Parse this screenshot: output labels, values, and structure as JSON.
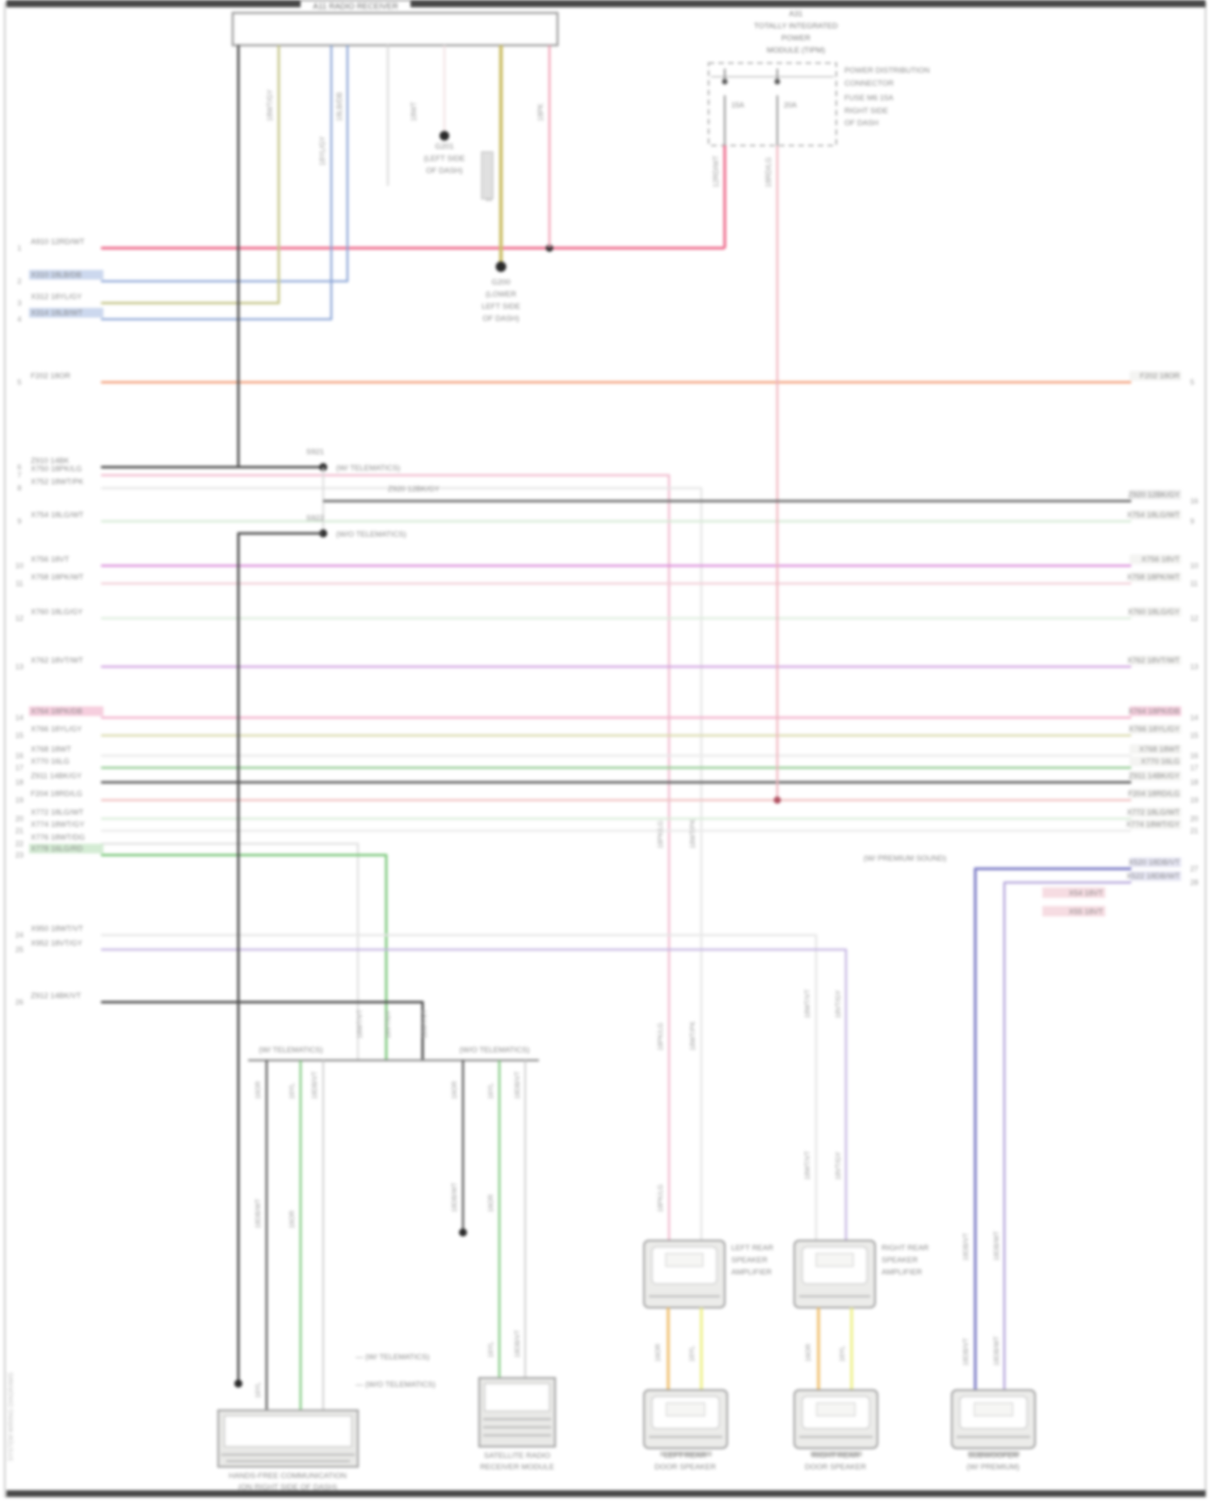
{
  "page": {
    "bg": "#ffffff",
    "border_color": "#c8c8c8",
    "edge_bar_color": "#474747",
    "watermark": "SYSTEM WIRING DIAGRAMS"
  },
  "radio": {
    "title": "A11 RADIO RECEIVER",
    "ground1_lines": [
      "G201",
      "(LEFT SIDE",
      "OF DASH)"
    ],
    "ground2_lines": [
      "G200",
      "(LOWER",
      "LEFT SIDE",
      "OF DASH)"
    ],
    "drop_codes": [
      "18WT/GY",
      "18LB/DB",
      "18YL/GY",
      "18WT",
      "16YL/BK",
      "18PK"
    ]
  },
  "tipm": {
    "title_lines": [
      "A31",
      "TOTALLY INTEGRATED",
      "POWER",
      "MODULE (TIPM)"
    ],
    "annotation_lines": [
      "POWER DISTRIBUTION",
      "CONNECTOR",
      "FUSE M6 15A",
      "RIGHT SIDE",
      "OF DASH"
    ],
    "fuse_labels": [
      "15A",
      "20A"
    ],
    "output_codes": [
      "12RD/WT",
      "18RD/LG"
    ]
  },
  "splices": {
    "s1_name": "S921",
    "s1_note": "(W/ TELEMATICS)",
    "s2_name": "S922",
    "s2_note": "(W/O TELEMATICS)",
    "ladder_label": "Z920 12BK/GY",
    "ladder_pin": "16"
  },
  "left_rows": [
    {
      "pin": "1",
      "label": "A910 12RD/WT",
      "color": "#ee6e8e",
      "bg": ""
    },
    {
      "pin": "2",
      "label": "X310 18LB/DB",
      "color": "#8aa4d6",
      "bg": "#ccd8ee"
    },
    {
      "pin": "3",
      "label": "X312 18YL/GY",
      "color": "#c8c88e",
      "bg": ""
    },
    {
      "pin": "4",
      "label": "X314 18LB/WT",
      "color": "#8aa4d6",
      "bg": "#ccd8ee"
    },
    {
      "pin": "5",
      "label": "F202 18OR",
      "color": "#f0946a",
      "bg": ""
    },
    {
      "pin": "6",
      "label": "Z910 14BK",
      "color": "#4a4a4a",
      "bg": ""
    },
    {
      "pin": "7",
      "label": "X750 18PK/LG",
      "color": "#f0b8cc",
      "bg": ""
    },
    {
      "pin": "8",
      "label": "X752 18WT/PK",
      "color": "#e6e6e6",
      "bg": ""
    },
    {
      "pin": "9",
      "label": "X754 18LG/WT",
      "color": "#d4ead4",
      "bg": ""
    },
    {
      "pin": "10",
      "label": "X756 18VT",
      "color": "#d887d8",
      "bg": ""
    },
    {
      "pin": "11",
      "label": "X758 18PK/WT",
      "color": "#f2ccd6",
      "bg": ""
    },
    {
      "pin": "12",
      "label": "X760 18LG/GY",
      "color": "#dcecdc",
      "bg": ""
    },
    {
      "pin": "13",
      "label": "X762 18VT/WT",
      "color": "#cf9fdf",
      "bg": ""
    },
    {
      "pin": "14",
      "label": "X764 18PK/DB",
      "color": "#f2aac6",
      "bg": "#f6cede"
    },
    {
      "pin": "15",
      "label": "X766 18YL/GY",
      "color": "#d8d8a8",
      "bg": ""
    },
    {
      "pin": "16",
      "label": "X768 18WT",
      "color": "#e9e9e9",
      "bg": ""
    },
    {
      "pin": "17",
      "label": "X770 16LG",
      "color": "#8cc88c",
      "bg": ""
    },
    {
      "pin": "18",
      "label": "Z911 14BK/GY",
      "color": "#5a5a5a",
      "bg": ""
    },
    {
      "pin": "19",
      "label": "F204 18RD/LG",
      "color": "#f0c0c0",
      "bg": ""
    },
    {
      "pin": "20",
      "label": "X772 18LG/WT",
      "color": "#d8ecd8",
      "bg": ""
    },
    {
      "pin": "21",
      "label": "X774 18WT/GY",
      "color": "#eaeaea",
      "bg": ""
    },
    {
      "pin": "22",
      "label": "X776 18WT/DG",
      "color": "#e0e0e0",
      "bg": ""
    },
    {
      "pin": "23",
      "label": "X778 16LG/RD",
      "color": "#7cc87c",
      "bg": "#d4ecd4"
    },
    {
      "pin": "24",
      "label": "X950 18WT/VT",
      "color": "#e6e6e6",
      "bg": ""
    },
    {
      "pin": "25",
      "label": "X952 18VT/GY",
      "color": "#c4b4e2",
      "bg": ""
    },
    {
      "pin": "26",
      "label": "Z912 14BK/VT",
      "color": "#4a4a4a",
      "bg": ""
    }
  ],
  "right_origin_rows": [
    {
      "pin": "27",
      "label": "X520 18DB/VT",
      "color": "#8080c8",
      "note": "(W/ PREMIUM SOUND)"
    },
    {
      "pin": "28",
      "label": "X522 18DB/WT",
      "color": "#b0a0d8",
      "note": ""
    }
  ],
  "right_mid_notes": [
    "X54 18VT",
    "X55 18VT"
  ],
  "bracket": {
    "header_left": "(W/ TELEMATICS)",
    "header_right": "(W/O TELEMATICS)"
  },
  "bottom": {
    "box1_label_lines": [
      "HANDS-FREE COMMUNICATION",
      "(ON RIGHT SIDE OF DASH)"
    ],
    "box2_label_lines": [
      "SATELLITE RADIO",
      "RECEIVER MODULE"
    ],
    "box2_notes": [
      "(W/ TELEMATICS)",
      "(W/O TELEMATICS)"
    ],
    "colA_top_lines": [
      "LEFT REAR",
      "SPEAKER",
      "AMPLIFIER"
    ],
    "colA_bottom_lines": [
      "LEFT REAR",
      "DOOR SPEAKER"
    ],
    "colB_top_lines": [
      "RIGHT REAR",
      "SPEAKER",
      "AMPLIFIER"
    ],
    "colB_bottom_lines": [
      "RIGHT REAR",
      "DOOR SPEAKER"
    ],
    "colC_bottom_lines": [
      "SUBWOOFER",
      "(W/ PREMIUM)"
    ],
    "feed_codes": [
      "16OR",
      "16YL",
      "18DB/VT",
      "18DB/WT",
      "18WT/VT",
      "18VT/GY",
      "18PK/LG",
      "18WT/PK"
    ]
  }
}
